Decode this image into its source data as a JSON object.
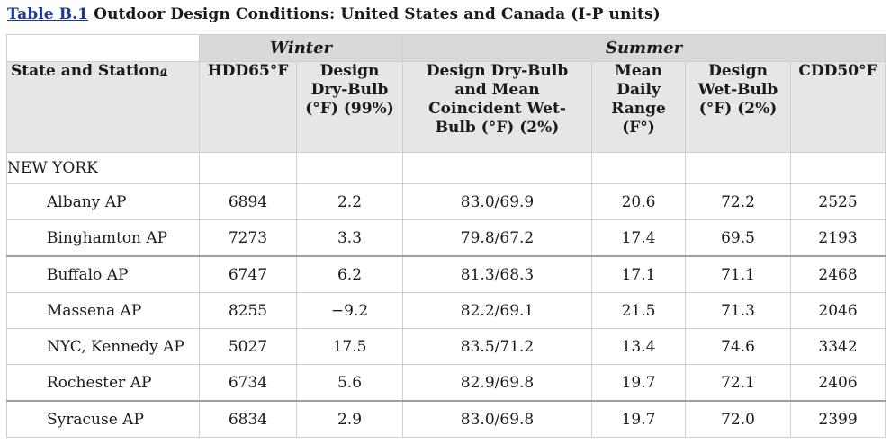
{
  "caption": {
    "ref": "Table B.1",
    "title": "Outdoor Design Conditions: United States and Canada (I-P units)"
  },
  "groups": {
    "winter": "Winter",
    "summer": "Summer"
  },
  "headers": {
    "station": "State and Station",
    "station_note": "a",
    "hdd": "HDD65°F",
    "winter_db": [
      "Design",
      "Dry-Bulb",
      "(°F) (99%)"
    ],
    "summer_db_mcwb": [
      "Design Dry-Bulb",
      "and Mean",
      "Coincident Wet-",
      "Bulb (°F) (2%)"
    ],
    "mean_range": [
      "Mean",
      "Daily",
      "Range",
      "(F°)"
    ],
    "summer_wb": [
      "Design",
      "Wet-Bulb",
      "(°F) (2%)"
    ],
    "cdd": "CDD50°F"
  },
  "state": "NEW YORK",
  "rows": [
    {
      "station": "Albany AP",
      "hdd": "6894",
      "winter_db": "2.2",
      "db_mcwb": "83.0/69.9",
      "range": "20.6",
      "wb": "72.2",
      "cdd": "2525"
    },
    {
      "station": "Binghamton AP",
      "hdd": "7273",
      "winter_db": "3.3",
      "db_mcwb": "79.8/67.2",
      "range": "17.4",
      "wb": "69.5",
      "cdd": "2193"
    },
    {
      "station": "Buffalo AP",
      "hdd": "6747",
      "winter_db": "6.2",
      "db_mcwb": "81.3/68.3",
      "range": "17.1",
      "wb": "71.1",
      "cdd": "2468"
    },
    {
      "station": "Massena AP",
      "hdd": "8255",
      "winter_db": "−9.2",
      "db_mcwb": "82.2/69.1",
      "range": "21.5",
      "wb": "71.3",
      "cdd": "2046"
    },
    {
      "station": "NYC, Kennedy AP",
      "hdd": "5027",
      "winter_db": "17.5",
      "db_mcwb": "83.5/71.2",
      "range": "13.4",
      "wb": "74.6",
      "cdd": "3342"
    },
    {
      "station": "Rochester AP",
      "hdd": "6734",
      "winter_db": "5.6",
      "db_mcwb": "82.9/69.8",
      "range": "19.7",
      "wb": "72.1",
      "cdd": "2406"
    },
    {
      "station": "Syracuse AP",
      "hdd": "6834",
      "winter_db": "2.9",
      "db_mcwb": "83.0/69.8",
      "range": "19.7",
      "wb": "72.0",
      "cdd": "2399"
    }
  ]
}
